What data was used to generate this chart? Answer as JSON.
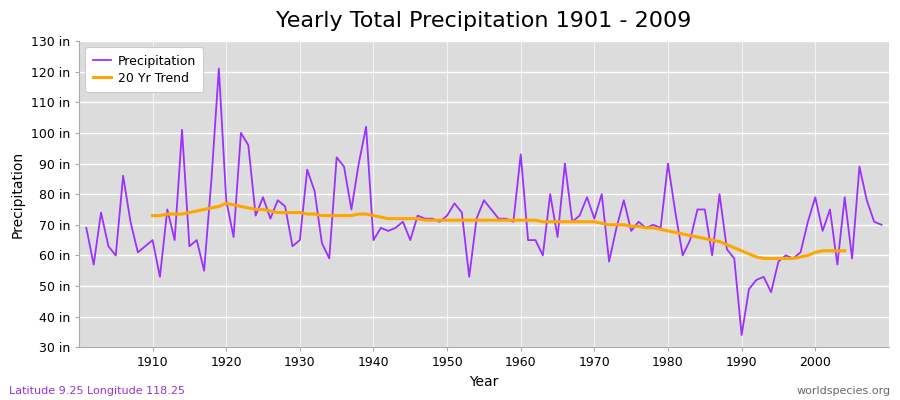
{
  "title": "Yearly Total Precipitation 1901 - 2009",
  "xlabel": "Year",
  "ylabel": "Precipitation",
  "subtitle_left": "Latitude 9.25 Longitude 118.25",
  "subtitle_right": "worldspecies.org",
  "years": [
    1901,
    1902,
    1903,
    1904,
    1905,
    1906,
    1907,
    1908,
    1909,
    1910,
    1911,
    1912,
    1913,
    1914,
    1915,
    1916,
    1917,
    1918,
    1919,
    1920,
    1921,
    1922,
    1923,
    1924,
    1925,
    1926,
    1927,
    1928,
    1929,
    1930,
    1931,
    1932,
    1933,
    1934,
    1935,
    1936,
    1937,
    1938,
    1939,
    1940,
    1941,
    1942,
    1943,
    1944,
    1945,
    1946,
    1947,
    1948,
    1949,
    1950,
    1951,
    1952,
    1953,
    1954,
    1955,
    1956,
    1957,
    1958,
    1959,
    1960,
    1961,
    1962,
    1963,
    1964,
    1965,
    1966,
    1967,
    1968,
    1969,
    1970,
    1971,
    1972,
    1973,
    1974,
    1975,
    1976,
    1977,
    1978,
    1979,
    1980,
    1981,
    1982,
    1983,
    1984,
    1985,
    1986,
    1987,
    1988,
    1989,
    1990,
    1991,
    1992,
    1993,
    1994,
    1995,
    1996,
    1997,
    1998,
    1999,
    2000,
    2001,
    2002,
    2003,
    2004,
    2005,
    2006,
    2007,
    2008,
    2009
  ],
  "precip": [
    69,
    57,
    74,
    63,
    60,
    86,
    71,
    61,
    63,
    65,
    53,
    75,
    65,
    101,
    63,
    65,
    55,
    85,
    121,
    78,
    66,
    100,
    96,
    73,
    79,
    72,
    78,
    76,
    63,
    65,
    88,
    81,
    64,
    59,
    92,
    89,
    75,
    90,
    102,
    65,
    69,
    68,
    69,
    71,
    65,
    73,
    72,
    72,
    71,
    73,
    77,
    74,
    53,
    72,
    78,
    75,
    72,
    72,
    71,
    93,
    65,
    65,
    60,
    80,
    66,
    90,
    71,
    73,
    79,
    72,
    80,
    58,
    69,
    78,
    68,
    71,
    69,
    70,
    69,
    90,
    74,
    60,
    65,
    75,
    75,
    60,
    80,
    62,
    59,
    34,
    49,
    52,
    53,
    48,
    58,
    60,
    59,
    61,
    71,
    79,
    68,
    75,
    57,
    79,
    59,
    89,
    78,
    71,
    70
  ],
  "trend": [
    null,
    null,
    null,
    null,
    null,
    null,
    null,
    null,
    null,
    73,
    73,
    73.5,
    73.5,
    73.5,
    74,
    74.5,
    75,
    75.5,
    76,
    77,
    76.5,
    76,
    75.5,
    75,
    75,
    74.5,
    74,
    74,
    74,
    74,
    73.5,
    73.5,
    73,
    73,
    73,
    73,
    73,
    73.5,
    73.5,
    73,
    72.5,
    72,
    72,
    72,
    72,
    72,
    71.5,
    71.5,
    71.5,
    71.5,
    71.5,
    71.5,
    71.5,
    71.5,
    71.5,
    71.5,
    71.5,
    71.5,
    71.5,
    71.5,
    71.5,
    71.5,
    71,
    71,
    71,
    71,
    71,
    71,
    71,
    71,
    70.5,
    70,
    70,
    70,
    69.5,
    69.5,
    69,
    69,
    68.5,
    68,
    67.5,
    67,
    66.5,
    66,
    65.5,
    65,
    64.5,
    63.5,
    62.5,
    61.5,
    60.5,
    59.5,
    59,
    59,
    59,
    59,
    59,
    59.5,
    60,
    61,
    61.5,
    61.5,
    61.5,
    61.5,
    null,
    null,
    null,
    null,
    null
  ],
  "precip_color": "#9B30FF",
  "trend_color": "#FFA500",
  "fig_bg_color": "#ffffff",
  "plot_bg_color": "#dcdcdc",
  "grid_color": "#ffffff",
  "ylim": [
    30,
    130
  ],
  "yticks": [
    30,
    40,
    50,
    60,
    70,
    80,
    90,
    100,
    110,
    120,
    130
  ],
  "xlim": [
    1900,
    2010
  ],
  "xticks": [
    1910,
    1920,
    1930,
    1940,
    1950,
    1960,
    1970,
    1980,
    1990,
    2000
  ],
  "title_fontsize": 16,
  "axis_label_fontsize": 10,
  "tick_fontsize": 9,
  "legend_fontsize": 9,
  "annotation_fontsize": 8,
  "subtitle_left_color": "#9933cc",
  "subtitle_right_color": "#666666"
}
